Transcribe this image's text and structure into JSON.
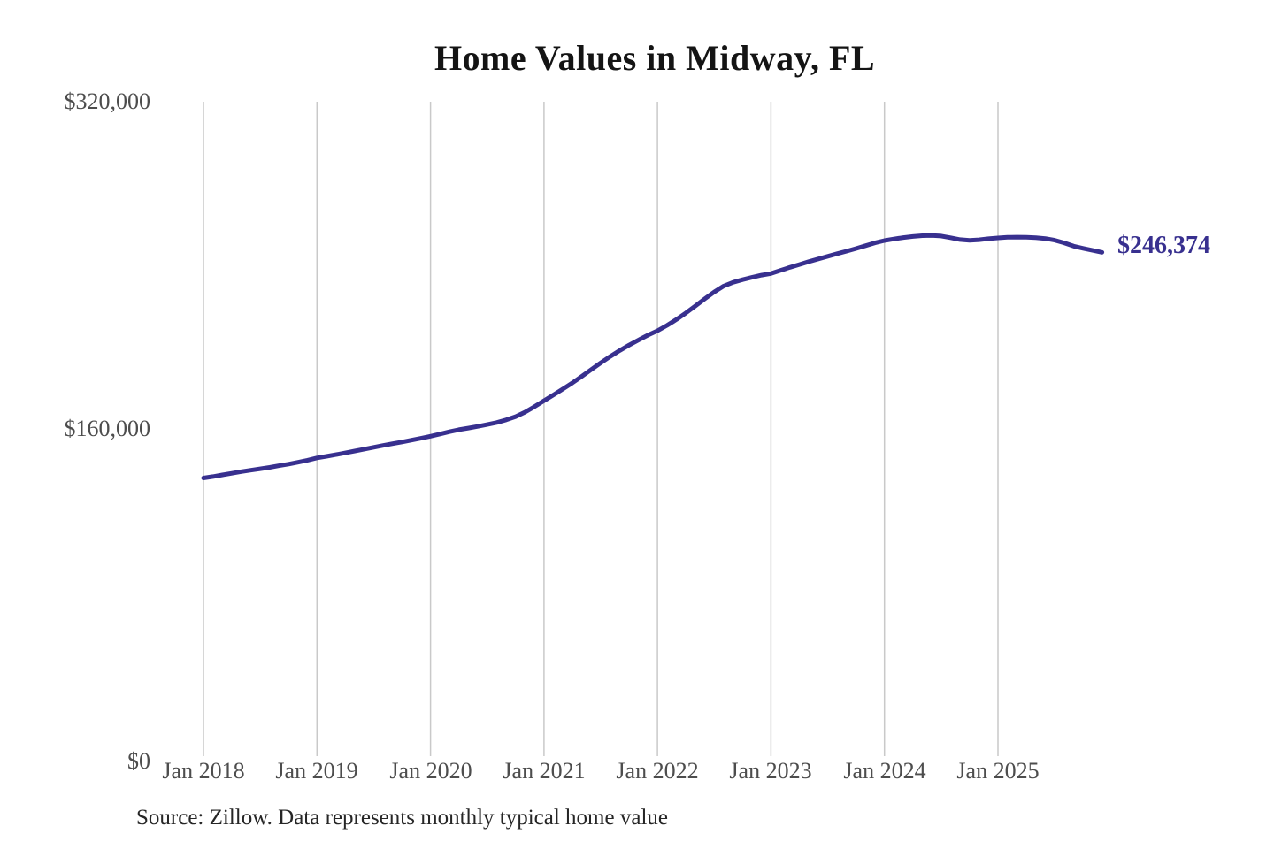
{
  "title": "Home Values in Midway, FL",
  "y_axis": {
    "labels": [
      "$320,000",
      "$160,000",
      "$0"
    ],
    "values": [
      320000,
      160000,
      0
    ]
  },
  "x_axis": {
    "labels": [
      "Jan 2018",
      "Jan 2019",
      "Jan 2020",
      "Jan 2021",
      "Jan 2022",
      "Jan 2023",
      "Jan 2024",
      "Jan 2025"
    ]
  },
  "annotation": {
    "latest_value": "$246,374"
  },
  "source_note": "Source: Zillow. Data represents monthly typical home value",
  "colors": {
    "line": "#38308f",
    "annotation_text": "#38308f",
    "gridline": "#c9c9c9",
    "title_text": "#141414",
    "tick_text": "#4d4d4d",
    "source_text": "#262626",
    "background": "#ffffff"
  },
  "chart_data": {
    "type": "line",
    "title": "Home Values in Midway, FL",
    "xlabel": "",
    "ylabel": "",
    "ylim": [
      0,
      320000
    ],
    "y_ticks": [
      {
        "value": 320000,
        "label": "$320,000"
      },
      {
        "value": 160000,
        "label": "$160,000"
      },
      {
        "value": 0,
        "label": "$0"
      }
    ],
    "x_tick_labels": [
      "Jan 2018",
      "Jan 2019",
      "Jan 2020",
      "Jan 2021",
      "Jan 2022",
      "Jan 2023",
      "Jan 2024",
      "Jan 2025"
    ],
    "grid": "vertical-yearly-only",
    "legend": "none",
    "latest_point": {
      "month": "2025-12",
      "value": 246374,
      "label": "$246,374"
    },
    "series": [
      {
        "name": "Typical home value",
        "months": [
          "2018-01",
          "2018-02",
          "2018-03",
          "2018-04",
          "2018-05",
          "2018-06",
          "2018-07",
          "2018-08",
          "2018-09",
          "2018-10",
          "2018-11",
          "2018-12",
          "2019-01",
          "2019-02",
          "2019-03",
          "2019-04",
          "2019-05",
          "2019-06",
          "2019-07",
          "2019-08",
          "2019-09",
          "2019-10",
          "2019-11",
          "2019-12",
          "2020-01",
          "2020-02",
          "2020-03",
          "2020-04",
          "2020-05",
          "2020-06",
          "2020-07",
          "2020-08",
          "2020-09",
          "2020-10",
          "2020-11",
          "2020-12",
          "2021-01",
          "2021-02",
          "2021-03",
          "2021-04",
          "2021-05",
          "2021-06",
          "2021-07",
          "2021-08",
          "2021-09",
          "2021-10",
          "2021-11",
          "2021-12",
          "2022-01",
          "2022-02",
          "2022-03",
          "2022-04",
          "2022-05",
          "2022-06",
          "2022-07",
          "2022-08",
          "2022-09",
          "2022-10",
          "2022-11",
          "2022-12",
          "2023-01",
          "2023-02",
          "2023-03",
          "2023-04",
          "2023-05",
          "2023-06",
          "2023-07",
          "2023-08",
          "2023-09",
          "2023-10",
          "2023-11",
          "2023-12",
          "2024-01",
          "2024-02",
          "2024-03",
          "2024-04",
          "2024-05",
          "2024-06",
          "2024-07",
          "2024-08",
          "2024-09",
          "2024-10",
          "2024-11",
          "2024-12",
          "2025-01",
          "2025-02",
          "2025-03",
          "2025-04",
          "2025-05",
          "2025-06",
          "2025-07",
          "2025-08",
          "2025-09",
          "2025-10",
          "2025-11",
          "2025-12"
        ],
        "values": [
          136000,
          136700,
          137500,
          138300,
          139100,
          139800,
          140500,
          141200,
          142000,
          142800,
          143700,
          144700,
          145800,
          146600,
          147400,
          148300,
          149200,
          150100,
          151000,
          151900,
          152800,
          153600,
          154500,
          155400,
          156400,
          157500,
          158600,
          159600,
          160400,
          161200,
          162100,
          163100,
          164400,
          166000,
          168200,
          170900,
          173800,
          176600,
          179500,
          182500,
          185700,
          189000,
          192300,
          195400,
          198300,
          201000,
          203500,
          205900,
          208000,
          210600,
          213500,
          216700,
          220100,
          223600,
          227000,
          229900,
          231700,
          233000,
          234100,
          235200,
          236000,
          237500,
          239000,
          240400,
          241800,
          243100,
          244400,
          245700,
          246900,
          248200,
          249600,
          251000,
          252100,
          252900,
          253600,
          254100,
          254500,
          254600,
          254300,
          253500,
          252600,
          252200,
          252500,
          253000,
          253400,
          253700,
          253800,
          253700,
          253500,
          253100,
          252300,
          251000,
          249400,
          248300,
          247300,
          246374
        ]
      }
    ]
  }
}
